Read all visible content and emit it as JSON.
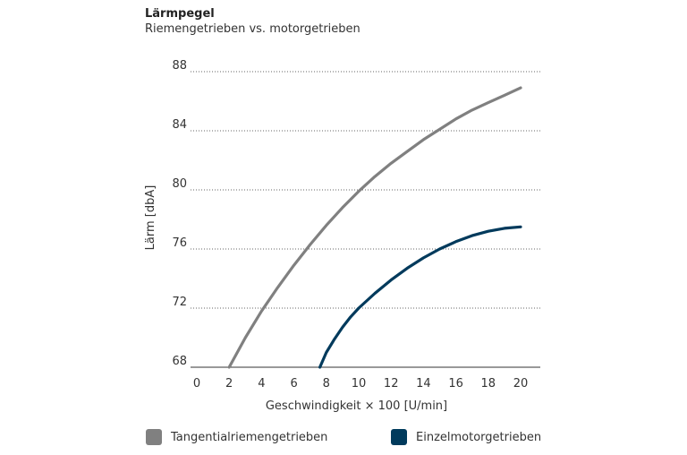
{
  "chart_data": {
    "type": "line",
    "title": "Lärmpegel",
    "subtitle": "Riemengetrieben vs. motorgetrieben",
    "xlabel": "Geschwindigkeit × 100 [U/min]",
    "ylabel": "Lärm [dbA]",
    "xlim": [
      0,
      20
    ],
    "ylim": [
      68,
      88
    ],
    "xticks": [
      0,
      2,
      4,
      6,
      8,
      10,
      12,
      14,
      16,
      18,
      20
    ],
    "yticks": [
      68,
      72,
      76,
      80,
      84,
      88
    ],
    "grid": "horizontal-dotted",
    "legend_position": "bottom",
    "series": [
      {
        "name": "Tangentialriemengetrieben",
        "color": "#808080",
        "x": [
          2.0,
          3.0,
          4.0,
          5.0,
          6.0,
          7.0,
          8.0,
          9.0,
          10.0,
          11.0,
          12.0,
          13.0,
          14.0,
          15.0,
          16.0,
          17.0,
          18.0,
          19.0,
          20.0
        ],
        "y": [
          68.0,
          70.0,
          71.8,
          73.4,
          74.9,
          76.3,
          77.6,
          78.8,
          79.9,
          80.9,
          81.8,
          82.6,
          83.4,
          84.1,
          84.8,
          85.4,
          85.9,
          86.4,
          86.9
        ]
      },
      {
        "name": "Einzelmotorgetrieben",
        "color": "#003a5c",
        "x": [
          7.6,
          8.0,
          8.5,
          9.0,
          9.5,
          10.0,
          11.0,
          12.0,
          13.0,
          14.0,
          15.0,
          16.0,
          17.0,
          18.0,
          19.0,
          20.0
        ],
        "y": [
          68.0,
          69.0,
          69.9,
          70.7,
          71.4,
          72.0,
          73.0,
          73.9,
          74.7,
          75.4,
          76.0,
          76.5,
          76.9,
          77.2,
          77.4,
          77.5
        ]
      }
    ]
  }
}
